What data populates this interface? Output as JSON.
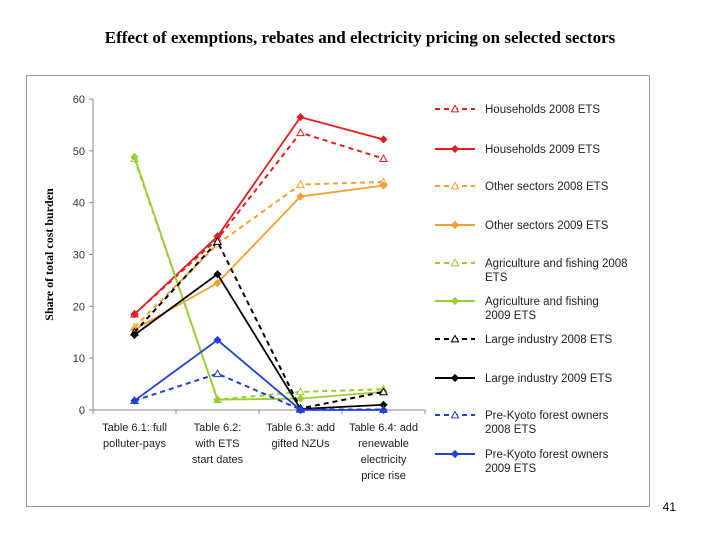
{
  "slide": {
    "title": "Effect of exemptions, rebates and electricity pricing on selected sectors",
    "page_number": "41"
  },
  "chart_data": {
    "type": "line",
    "title": "",
    "xlabel": "",
    "ylabel": "Share of total cost burden",
    "ylim": [
      0,
      60
    ],
    "yticks": [
      0,
      10,
      20,
      30,
      40,
      50,
      60
    ],
    "grid": false,
    "legend_position": "right",
    "categories": [
      [
        "Table 6.1: full",
        "polluter-pays"
      ],
      [
        "Table 6.2:",
        "with ETS",
        "start dates"
      ],
      [
        "Table 6.3: add",
        "gifted NZUs"
      ],
      [
        "Table 6.4: add",
        "renewable",
        "electricity",
        "price rise"
      ]
    ],
    "series": [
      {
        "name": [
          "Households 2008 ETS"
        ],
        "color": "#e02020",
        "dashed": true,
        "marker": "triangle-open",
        "values": [
          18.5,
          33,
          53.5,
          48.5
        ]
      },
      {
        "name": [
          "Households 2009 ETS"
        ],
        "color": "#e02020",
        "dashed": false,
        "marker": "diamond",
        "values": [
          18.5,
          33.5,
          56.5,
          52.2
        ]
      },
      {
        "name": [
          "Other sectors 2008 ETS"
        ],
        "color": "#f5a030",
        "dashed": true,
        "marker": "triangle-open",
        "values": [
          16,
          32,
          43.5,
          44
        ]
      },
      {
        "name": [
          "Other sectors 2009 ETS"
        ],
        "color": "#f5a030",
        "dashed": false,
        "marker": "diamond",
        "values": [
          15.5,
          24.5,
          41.2,
          43.3
        ]
      },
      {
        "name": [
          "Agriculture and fishing 2008",
          "ETS"
        ],
        "color": "#9acd32",
        "dashed": true,
        "marker": "triangle-open",
        "values": [
          48.5,
          2,
          3.5,
          4
        ]
      },
      {
        "name": [
          "Agriculture and fishing",
          "2009 ETS"
        ],
        "color": "#9acd32",
        "dashed": false,
        "marker": "diamond",
        "values": [
          48.8,
          2,
          2.2,
          3.5
        ]
      },
      {
        "name": [
          "Large industry 2008 ETS"
        ],
        "color": "#000000",
        "dashed": true,
        "marker": "triangle-open",
        "values": [
          15,
          32.5,
          0.3,
          3.5
        ]
      },
      {
        "name": [
          "Large industry 2009 ETS"
        ],
        "color": "#000000",
        "dashed": false,
        "marker": "diamond",
        "values": [
          14.5,
          26.2,
          0.2,
          1
        ]
      },
      {
        "name": [
          "Pre-Kyoto forest owners",
          "2008 ETS"
        ],
        "color": "#2040d0",
        "dashed": true,
        "marker": "triangle-open",
        "values": [
          1.8,
          7,
          0.1,
          0.1
        ]
      },
      {
        "name": [
          "Pre-Kyoto forest owners",
          "2009 ETS"
        ],
        "color": "#2040d0",
        "dashed": false,
        "marker": "diamond",
        "values": [
          1.8,
          13.5,
          0,
          0
        ]
      }
    ]
  }
}
